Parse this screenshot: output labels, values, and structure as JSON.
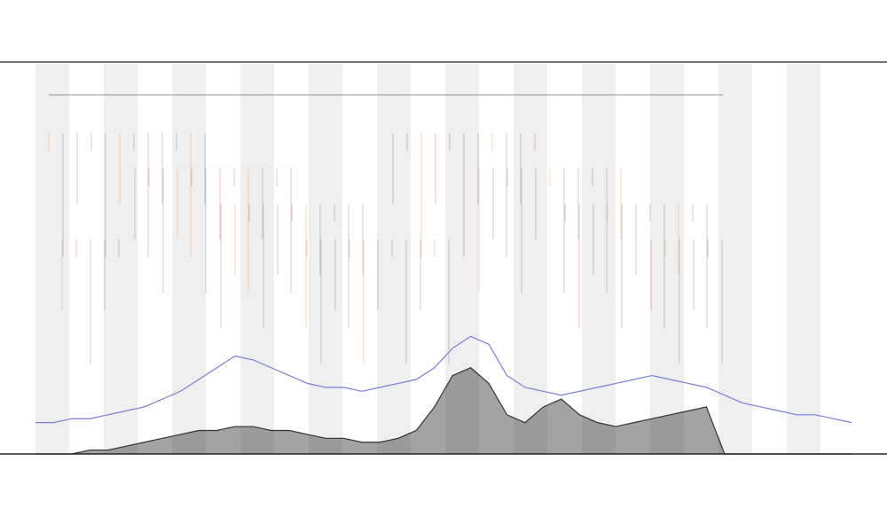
{
  "chart_data": {
    "type": "line",
    "x": [
      0,
      1,
      2,
      3,
      4,
      5,
      6,
      7,
      8,
      9,
      10,
      11,
      12,
      13,
      14,
      15,
      16,
      17,
      18,
      19,
      20,
      21,
      22,
      23,
      24,
      25,
      26,
      27,
      28,
      29,
      30,
      31,
      32,
      33,
      34,
      35,
      36,
      37,
      38,
      39,
      40,
      41,
      42,
      43,
      44,
      45
    ],
    "xlim": [
      0,
      45
    ],
    "ylim": [
      0,
      100
    ],
    "series": [
      {
        "color": "#7b7bdc",
        "values": [
          8,
          8,
          9,
          9,
          10,
          11,
          12,
          14,
          16,
          19,
          22,
          25,
          24,
          22,
          20,
          18,
          17,
          17,
          16,
          17,
          18,
          19,
          22,
          27,
          30,
          28,
          20,
          17,
          16,
          15,
          16,
          17,
          18,
          19,
          20,
          19,
          18,
          17,
          15,
          13,
          12,
          11,
          10,
          10,
          9,
          8
        ]
      },
      {
        "color": "#333333",
        "area": true,
        "values": [
          0,
          0,
          0,
          1,
          1,
          2,
          3,
          4,
          5,
          6,
          6,
          7,
          7,
          6,
          6,
          5,
          4,
          4,
          3,
          3,
          4,
          6,
          12,
          20,
          22,
          18,
          10,
          8,
          12,
          14,
          10,
          8,
          7,
          8,
          9,
          10,
          11,
          12,
          0,
          0,
          0,
          0,
          0,
          0,
          0,
          0
        ]
      }
    ]
  }
}
